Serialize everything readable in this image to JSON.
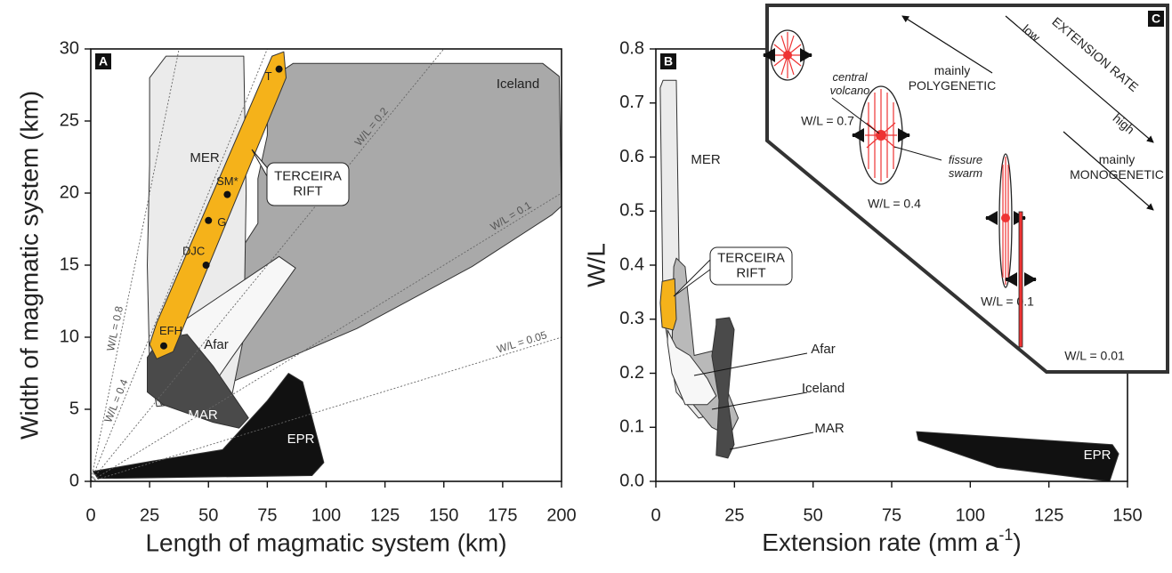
{
  "chart_data": [
    {
      "type": "region",
      "panel": "A",
      "xlabel": "Length of magmatic system (km)",
      "ylabel": "Width of magmatic system (km)",
      "xlim": [
        0,
        200
      ],
      "ylim": [
        0,
        30
      ],
      "xticks": [
        0,
        25,
        50,
        75,
        100,
        125,
        150,
        175,
        200
      ],
      "yticks": [
        0,
        5,
        10,
        15,
        20,
        25,
        30
      ],
      "regions": [
        {
          "name": "Iceland",
          "color": "#a9a9a9",
          "x": [
            75,
            86,
            192,
            199,
            200,
            196,
            162,
            113,
            60,
            41,
            37,
            50,
            71,
            71,
            75
          ],
          "y": [
            27.8,
            29,
            29,
            28.1,
            19.1,
            18.5,
            14.9,
            10.6,
            6.9,
            6.2,
            8.6,
            12.6,
            17.9,
            21,
            24
          ]
        },
        {
          "name": "MER",
          "color": "#ebebeb",
          "x": [
            25,
            32,
            40,
            65,
            66,
            65,
            60,
            45,
            28,
            25,
            24,
            25
          ],
          "y": [
            28,
            29.5,
            29.5,
            29.5,
            20,
            10,
            6,
            5.5,
            5.2,
            8,
            15,
            22
          ]
        },
        {
          "name": "Afar",
          "color": "#f7f7f7",
          "x": [
            39,
            80,
            87,
            60,
            52,
            41,
            30,
            26
          ],
          "y": [
            11.1,
            15.6,
            14.8,
            8.6,
            6.7,
            6.2,
            5.3,
            6.9
          ]
        },
        {
          "name": "MAR",
          "color": "#4a4a4a",
          "x": [
            29.5,
            41,
            52,
            67,
            63,
            52,
            31,
            24,
            24
          ],
          "y": [
            9.9,
            10.2,
            8,
            4.4,
            3.7,
            4.1,
            5.3,
            6.2,
            8.6
          ]
        },
        {
          "name": "EPR",
          "color": "#111111",
          "x": [
            1,
            26,
            56,
            75,
            84,
            90,
            99,
            94,
            3
          ],
          "y": [
            0.7,
            1.4,
            2.2,
            5.6,
            7.5,
            6.9,
            1.3,
            0.4,
            0.2
          ]
        },
        {
          "color": "#f5b21a",
          "x": [
            25,
            28,
            35,
            83,
            82,
            77,
            28
          ],
          "y": [
            9.5,
            8.5,
            9,
            28,
            29.8,
            29.5,
            11
          ]
        }
      ],
      "ratio_lines": [
        {
          "value": 0.8,
          "label": "W/L = 0.8"
        },
        {
          "value": 0.4,
          "label": "W/L = 0.4"
        },
        {
          "value": 0.2,
          "label": "W/L = 0.2"
        },
        {
          "value": 0.1,
          "label": "W/L = 0.1"
        },
        {
          "value": 0.05,
          "label": "W/L = 0.05"
        }
      ],
      "points": {
        "labels": [
          "T",
          "SM*",
          "G",
          "DJC",
          "EFH"
        ],
        "x": [
          80,
          58,
          50,
          49,
          31
        ],
        "y": [
          28.6,
          19.9,
          18.1,
          15.0,
          9.4
        ]
      },
      "annotation": [
        "TERCEIRA",
        "RIFT"
      ]
    },
    {
      "type": "region",
      "panel": "B",
      "xlabel": [
        "Extension rate (mm a",
        "-1",
        ")"
      ],
      "ylabel": "W/L",
      "xlim": [
        0,
        150
      ],
      "ylim": [
        0,
        0.8
      ],
      "xticks": [
        0,
        25,
        50,
        75,
        100,
        125,
        150
      ],
      "yticks": [
        {
          "value": 0,
          "label": "0.0"
        },
        0.1,
        0.2,
        0.3,
        0.4,
        0.5,
        0.6,
        0.7,
        0.8
      ],
      "regions": [
        {
          "name": "MER",
          "color": "#ebebeb",
          "x": [
            2.3,
            6.5,
            7.4,
            10.8,
            19.2,
            13.6,
            6.5,
            2.3,
            1.4
          ],
          "y": [
            0.742,
            0.742,
            0.397,
            0.233,
            0.125,
            0.117,
            0.165,
            0.313,
            0.728
          ]
        },
        {
          "name": "Iceland",
          "color": "#b9b9b9",
          "x": [
            6.5,
            9.3,
            12.2,
            17.8,
            20.5,
            26.2,
            23.4,
            17.8,
            10.8,
            5.1,
            5.7
          ],
          "y": [
            0.413,
            0.397,
            0.233,
            0.241,
            0.2,
            0.117,
            0.084,
            0.1,
            0.15,
            0.233,
            0.397
          ]
        },
        {
          "name": "Afar",
          "color": "#f7f7f7",
          "x": [
            3.7,
            6.5,
            10.8,
            16.4,
            19.2,
            16.4,
            9.3,
            5.1,
            3.7
          ],
          "y": [
            0.28,
            0.248,
            0.233,
            0.19,
            0.158,
            0.142,
            0.142,
            0.2,
            0.257
          ]
        },
        {
          "name": "MAR",
          "color": "#4a4a4a",
          "x": [
            19.2,
            23.4,
            24.9,
            22.9,
            24.9,
            22.9,
            19.2,
            20.1,
            17.8,
            19.2
          ],
          "y": [
            0.3,
            0.303,
            0.281,
            0.15,
            0.068,
            0.043,
            0.048,
            0.15,
            0.232,
            0.29
          ]
        },
        {
          "name": "EPR",
          "color": "#111111",
          "x": [
            82.9,
            145.2,
            147.2,
            144.3,
            108.4,
            83.5
          ],
          "y": [
            0.092,
            0.068,
            0.051,
            0,
            0.026,
            0.076
          ]
        },
        {
          "color": "#f5b21a",
          "x": [
            2,
            6,
            6.5,
            5.5,
            2,
            1.4
          ],
          "y": [
            0.37,
            0.375,
            0.3,
            0.28,
            0.285,
            0.33
          ]
        }
      ],
      "annotation": [
        "TERCEIRA",
        "RIFT"
      ]
    }
  ],
  "inset": {
    "panel": "C",
    "polygenetic": [
      "mainly",
      "POLYGENETIC"
    ],
    "monogenetic": [
      "mainly",
      "MONOGENETIC"
    ],
    "axis": "EXTENSION RATE",
    "low": "low",
    "high": "high",
    "central_volcano": [
      "central",
      "volcano"
    ],
    "fissure_swarm": [
      "fissure",
      "swarm"
    ],
    "ratios": [
      "W/L = 0.7",
      "W/L = 0.4",
      "W/L = 0.1",
      "W/L = 0.01"
    ]
  }
}
